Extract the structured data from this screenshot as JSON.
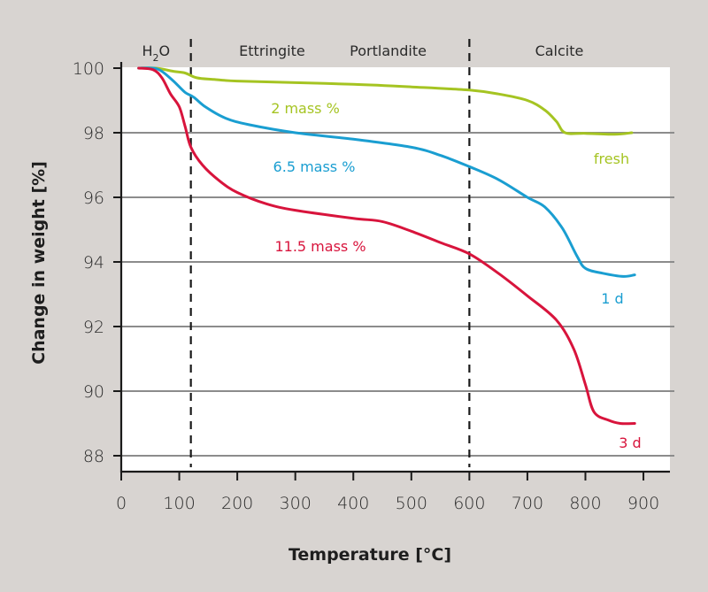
{
  "chart_data": {
    "type": "line",
    "title": "",
    "xlabel": "Temperature [°C]",
    "ylabel": "Change in weight [%]",
    "xlim": [
      0,
      940
    ],
    "ylim": [
      87.5,
      100
    ],
    "x_ticks": [
      0,
      100,
      200,
      300,
      400,
      500,
      600,
      700,
      800,
      900
    ],
    "y_ticks": [
      88,
      90,
      92,
      94,
      96,
      98,
      100
    ],
    "grid": "horizontal",
    "region_dividers": [
      120,
      600
    ],
    "regions": [
      {
        "label_main": "H",
        "label_sub": "2",
        "label_end": "O",
        "x": 60
      },
      {
        "label": "Ettringite",
        "x": 260
      },
      {
        "label": "Portlandite",
        "x": 460
      },
      {
        "label": "Calcite",
        "x": 755
      }
    ],
    "series": [
      {
        "name": "fresh",
        "annotation": "2 mass %",
        "color": "#a5c422",
        "points": [
          [
            30,
            100
          ],
          [
            60,
            100
          ],
          [
            90,
            99.9
          ],
          [
            110,
            99.85
          ],
          [
            130,
            99.7
          ],
          [
            160,
            99.65
          ],
          [
            200,
            99.6
          ],
          [
            300,
            99.55
          ],
          [
            400,
            99.5
          ],
          [
            500,
            99.42
          ],
          [
            600,
            99.32
          ],
          [
            650,
            99.2
          ],
          [
            700,
            99.0
          ],
          [
            730,
            98.7
          ],
          [
            750,
            98.35
          ],
          [
            765,
            98.0
          ],
          [
            800,
            97.98
          ],
          [
            850,
            97.95
          ],
          [
            880,
            98.0
          ]
        ]
      },
      {
        "name": "1 d",
        "annotation": "6.5 mass %",
        "color": "#1a9ed1",
        "points": [
          [
            30,
            100
          ],
          [
            55,
            100
          ],
          [
            70,
            99.9
          ],
          [
            90,
            99.6
          ],
          [
            110,
            99.25
          ],
          [
            125,
            99.1
          ],
          [
            145,
            98.8
          ],
          [
            180,
            98.45
          ],
          [
            220,
            98.25
          ],
          [
            300,
            98.0
          ],
          [
            400,
            97.8
          ],
          [
            500,
            97.55
          ],
          [
            550,
            97.3
          ],
          [
            600,
            96.95
          ],
          [
            650,
            96.55
          ],
          [
            700,
            96.0
          ],
          [
            730,
            95.7
          ],
          [
            760,
            95.05
          ],
          [
            785,
            94.2
          ],
          [
            800,
            93.8
          ],
          [
            830,
            93.65
          ],
          [
            865,
            93.55
          ],
          [
            885,
            93.6
          ]
        ]
      },
      {
        "name": "3 d",
        "annotation": "11.5 mass %",
        "color": "#d8143c",
        "points": [
          [
            30,
            100
          ],
          [
            55,
            99.95
          ],
          [
            70,
            99.7
          ],
          [
            85,
            99.2
          ],
          [
            100,
            98.8
          ],
          [
            110,
            98.2
          ],
          [
            120,
            97.55
          ],
          [
            140,
            97.0
          ],
          [
            170,
            96.5
          ],
          [
            200,
            96.15
          ],
          [
            250,
            95.8
          ],
          [
            300,
            95.6
          ],
          [
            400,
            95.35
          ],
          [
            450,
            95.25
          ],
          [
            500,
            94.95
          ],
          [
            550,
            94.6
          ],
          [
            600,
            94.25
          ],
          [
            650,
            93.65
          ],
          [
            700,
            92.95
          ],
          [
            750,
            92.2
          ],
          [
            780,
            91.3
          ],
          [
            800,
            90.2
          ],
          [
            815,
            89.35
          ],
          [
            840,
            89.1
          ],
          [
            860,
            89.0
          ],
          [
            885,
            89.0
          ]
        ]
      }
    ]
  }
}
